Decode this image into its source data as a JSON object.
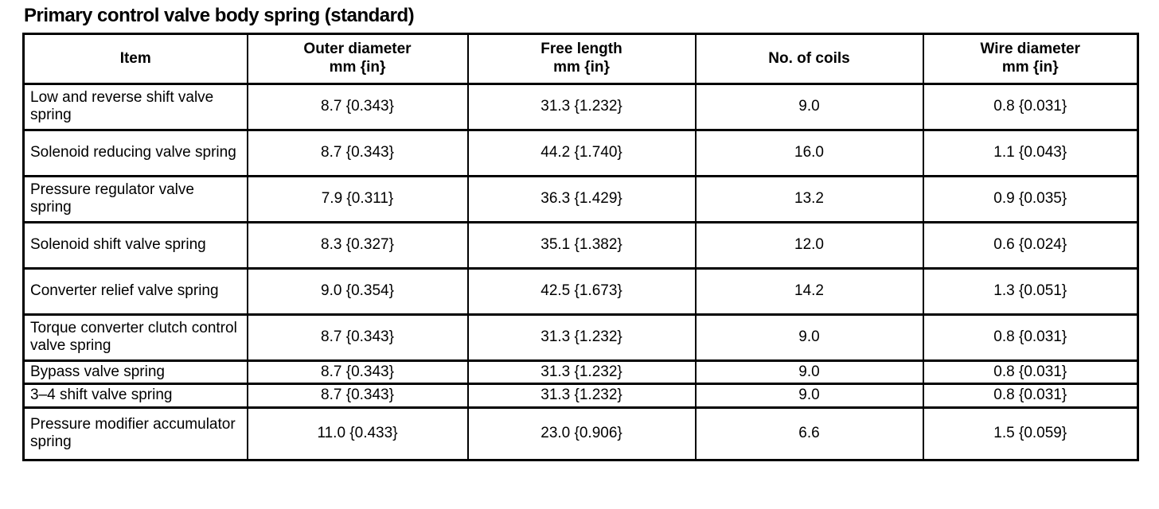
{
  "title": "Primary control valve body spring (standard)",
  "table": {
    "columns": [
      {
        "label": "Item",
        "unit": ""
      },
      {
        "label": "Outer diameter",
        "unit": "mm {in}"
      },
      {
        "label": "Free length",
        "unit": "mm {in}"
      },
      {
        "label": "No. of coils",
        "unit": ""
      },
      {
        "label": "Wire diameter",
        "unit": "mm {in}"
      }
    ],
    "rows": [
      {
        "item": "Low and reverse shift valve spring",
        "outer_diameter": "8.7 {0.343}",
        "free_length": "31.3 {1.232}",
        "no_of_coils": "9.0",
        "wire_diameter": "0.8 {0.031}"
      },
      {
        "item": "Solenoid reducing valve spring",
        "outer_diameter": "8.7 {0.343}",
        "free_length": "44.2 {1.740}",
        "no_of_coils": "16.0",
        "wire_diameter": "1.1 {0.043}"
      },
      {
        "item": "Pressure regulator valve spring",
        "outer_diameter": "7.9 {0.311}",
        "free_length": "36.3 {1.429}",
        "no_of_coils": "13.2",
        "wire_diameter": "0.9 {0.035}"
      },
      {
        "item": "Solenoid shift valve spring",
        "outer_diameter": "8.3 {0.327}",
        "free_length": "35.1 {1.382}",
        "no_of_coils": "12.0",
        "wire_diameter": "0.6 {0.024}"
      },
      {
        "item": "Converter relief valve spring",
        "outer_diameter": "9.0 {0.354}",
        "free_length": "42.5 {1.673}",
        "no_of_coils": "14.2",
        "wire_diameter": "1.3 {0.051}"
      },
      {
        "item": "Torque converter clutch control valve spring",
        "outer_diameter": "8.7 {0.343}",
        "free_length": "31.3 {1.232}",
        "no_of_coils": "9.0",
        "wire_diameter": "0.8 {0.031}"
      },
      {
        "item": "Bypass valve spring",
        "outer_diameter": "8.7 {0.343}",
        "free_length": "31.3 {1.232}",
        "no_of_coils": "9.0",
        "wire_diameter": "0.8 {0.031}"
      },
      {
        "item": "3–4 shift valve spring",
        "outer_diameter": "8.7 {0.343}",
        "free_length": "31.3 {1.232}",
        "no_of_coils": "9.0",
        "wire_diameter": "0.8 {0.031}"
      },
      {
        "item": "Pressure modifier accumulator spring",
        "outer_diameter": "11.0 {0.433}",
        "free_length": "23.0 {0.906}",
        "no_of_coils": "6.6",
        "wire_diameter": "1.5 {0.059}"
      }
    ]
  },
  "colors": {
    "text": "#000000",
    "border": "#000000",
    "background": "#ffffff"
  }
}
